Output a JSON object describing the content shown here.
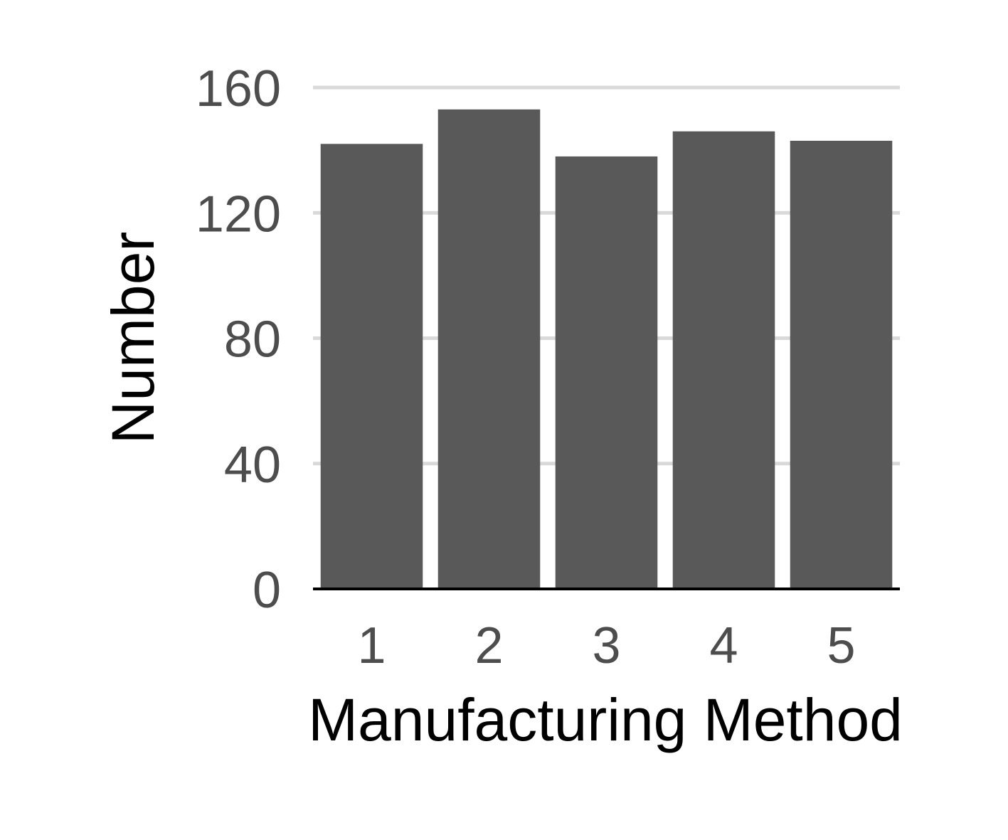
{
  "chart_data": {
    "type": "bar",
    "categories": [
      "1",
      "2",
      "3",
      "4",
      "5"
    ],
    "values": [
      142,
      153,
      138,
      146,
      143
    ],
    "xlabel": "Manufacturing Method",
    "ylabel": "Number",
    "ylim": [
      0,
      160
    ],
    "yticks": [
      0,
      40,
      80,
      120,
      160
    ],
    "grid": "horizontal",
    "bar_color": "#595959",
    "grid_color": "#d9d9d9"
  }
}
